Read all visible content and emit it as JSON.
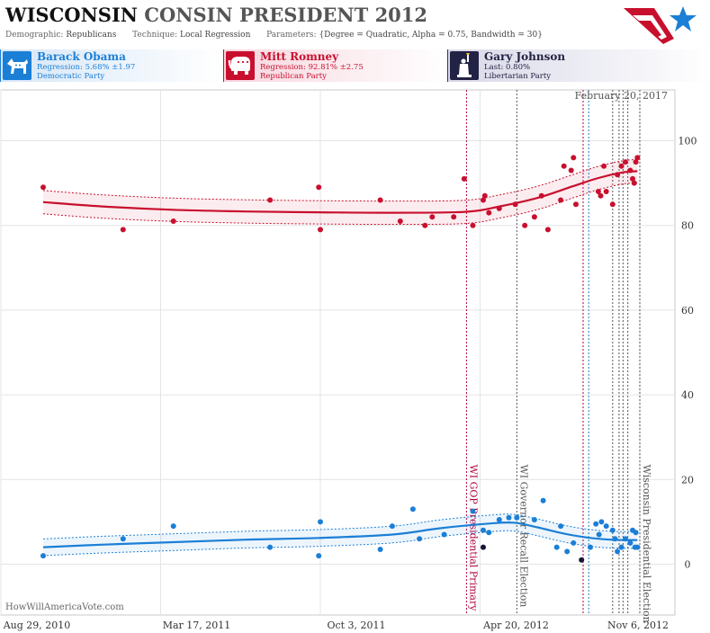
{
  "header": {
    "title_state": "WISCONSIN",
    "title_rest": "CONSIN PRESIDENT 2012",
    "demographic_label": "Demographic:",
    "demographic_value": "Republicans",
    "technique_label": "Technique:",
    "technique_value": "Local Regression",
    "parameters_label": "Parameters:",
    "parameters_value": "{Degree = Quadratic, Alpha = 0.75, Bandwidth = 30}"
  },
  "candidates": [
    {
      "name": "Barack Obama",
      "stat": "Regression: 5.68% ±1.97",
      "party": "Democratic Party",
      "color": "#1b7fd6",
      "icon": "donkey-icon"
    },
    {
      "name": "Mitt Romney",
      "stat": "Regression: 92.81% ±2.75",
      "party": "Republican Party",
      "color": "#c8102e",
      "icon": "elephant-icon"
    },
    {
      "name": "Gary Johnson",
      "stat": "Last: 0.80%",
      "party": "Libertarian Party",
      "color": "#222244",
      "icon": "statue-of-liberty-icon"
    }
  ],
  "watermark": "HowWillAmericaVote.com",
  "date_stamp": "February 20, 2017",
  "chart_data": {
    "type": "scatter",
    "x_ticks": [
      "Aug 29, 2010",
      "Mar 17, 2011",
      "Oct 3, 2011",
      "Apr 20, 2012",
      "Nov 6, 2012"
    ],
    "x_range": [
      "2010-08-29",
      "2012-11-06"
    ],
    "ylim": [
      -12,
      112
    ],
    "y_ticks": [
      0,
      20,
      40,
      60,
      80,
      100
    ],
    "grid": true,
    "events": [
      {
        "date": "2012-04-03",
        "label": "WI GOP Presidential Primary",
        "color": "#b0003a"
      },
      {
        "date": "2012-06-05",
        "label": "WI Governor Recall Election",
        "color": "#555555"
      },
      {
        "date": "2012-11-06",
        "label": "Wisconsin Presidential Election",
        "color": "#555555"
      }
    ],
    "extra_event_dates": [
      {
        "date": "2012-08-27",
        "color": "#b0003a"
      },
      {
        "date": "2012-09-03",
        "color": "#1b7fd6"
      },
      {
        "date": "2012-10-03",
        "color": "#555555"
      },
      {
        "date": "2012-10-11",
        "color": "#555555"
      },
      {
        "date": "2012-10-16",
        "color": "#555555"
      },
      {
        "date": "2012-10-22",
        "color": "#555555"
      }
    ],
    "series": [
      {
        "name": "Mitt Romney",
        "color": "#c8102e",
        "points": [
          [
            "2010-10-21",
            89
          ],
          [
            "2011-01-29",
            79
          ],
          [
            "2011-04-02",
            81
          ],
          [
            "2011-08-01",
            86
          ],
          [
            "2011-10-01",
            89
          ],
          [
            "2011-10-03",
            79
          ],
          [
            "2011-12-17",
            86
          ],
          [
            "2012-01-11",
            81
          ],
          [
            "2012-02-11",
            80
          ],
          [
            "2012-02-20",
            82
          ],
          [
            "2012-03-18",
            82
          ],
          [
            "2012-03-31",
            91
          ],
          [
            "2012-04-11",
            80
          ],
          [
            "2012-04-24",
            86
          ],
          [
            "2012-04-26",
            87
          ],
          [
            "2012-05-01",
            83
          ],
          [
            "2012-05-14",
            84
          ],
          [
            "2012-06-03",
            85
          ],
          [
            "2012-06-15",
            80
          ],
          [
            "2012-06-27",
            82
          ],
          [
            "2012-07-06",
            87
          ],
          [
            "2012-07-14",
            79
          ],
          [
            "2012-07-30",
            86
          ],
          [
            "2012-08-03",
            94
          ],
          [
            "2012-08-12",
            93
          ],
          [
            "2012-08-15",
            96
          ],
          [
            "2012-08-18",
            85
          ],
          [
            "2012-09-15",
            88
          ],
          [
            "2012-09-18",
            87
          ],
          [
            "2012-09-22",
            94
          ],
          [
            "2012-09-25",
            88
          ],
          [
            "2012-10-03",
            85
          ],
          [
            "2012-10-09",
            92
          ],
          [
            "2012-10-14",
            94
          ],
          [
            "2012-10-19",
            95
          ],
          [
            "2012-10-25",
            93
          ],
          [
            "2012-10-28",
            91
          ],
          [
            "2012-10-30",
            90
          ],
          [
            "2012-11-01",
            95
          ],
          [
            "2012-11-03",
            96
          ]
        ],
        "trend": [
          [
            "2010-10-21",
            85.5
          ],
          [
            "2011-01-01",
            84.5
          ],
          [
            "2011-04-01",
            83.7
          ],
          [
            "2011-07-01",
            83.3
          ],
          [
            "2011-10-01",
            83.1
          ],
          [
            "2012-01-01",
            83
          ],
          [
            "2012-04-01",
            83.2
          ],
          [
            "2012-05-15",
            84.5
          ],
          [
            "2012-07-01",
            86.5
          ],
          [
            "2012-08-15",
            89.3
          ],
          [
            "2012-09-15",
            91.2
          ],
          [
            "2012-10-15",
            92.5
          ],
          [
            "2012-11-03",
            92.81
          ]
        ],
        "band": 2.75
      },
      {
        "name": "Barack Obama",
        "color": "#1b7fd6",
        "points": [
          [
            "2010-10-21",
            2
          ],
          [
            "2011-01-29",
            6
          ],
          [
            "2011-04-02",
            9
          ],
          [
            "2011-08-01",
            4
          ],
          [
            "2011-10-01",
            2
          ],
          [
            "2011-10-03",
            10
          ],
          [
            "2011-12-17",
            3.5
          ],
          [
            "2012-01-01",
            9
          ],
          [
            "2012-01-27",
            13
          ],
          [
            "2012-02-04",
            6
          ],
          [
            "2012-03-06",
            7
          ],
          [
            "2012-04-11",
            12.5
          ],
          [
            "2012-04-24",
            8
          ],
          [
            "2012-05-01",
            7.5
          ],
          [
            "2012-05-14",
            10.5
          ],
          [
            "2012-05-26",
            11
          ],
          [
            "2012-06-05",
            11
          ],
          [
            "2012-06-27",
            10.5
          ],
          [
            "2012-07-08",
            15
          ],
          [
            "2012-07-25",
            4
          ],
          [
            "2012-07-30",
            9
          ],
          [
            "2012-08-07",
            3
          ],
          [
            "2012-08-15",
            5
          ],
          [
            "2012-09-05",
            4
          ],
          [
            "2012-09-12",
            9.5
          ],
          [
            "2012-09-16",
            7
          ],
          [
            "2012-09-19",
            10
          ],
          [
            "2012-09-25",
            9
          ],
          [
            "2012-10-03",
            8
          ],
          [
            "2012-10-06",
            6
          ],
          [
            "2012-10-09",
            3
          ],
          [
            "2012-10-14",
            4
          ],
          [
            "2012-10-19",
            6
          ],
          [
            "2012-10-25",
            5
          ],
          [
            "2012-10-28",
            8
          ],
          [
            "2012-10-31",
            4
          ],
          [
            "2012-11-01",
            7.5
          ],
          [
            "2012-11-03",
            4
          ]
        ],
        "trend": [
          [
            "2010-10-21",
            4
          ],
          [
            "2011-01-01",
            4.6
          ],
          [
            "2011-04-01",
            5.2
          ],
          [
            "2011-07-01",
            5.8
          ],
          [
            "2011-10-01",
            6.2
          ],
          [
            "2012-01-01",
            7
          ],
          [
            "2012-03-01",
            8.5
          ],
          [
            "2012-05-01",
            9.6
          ],
          [
            "2012-06-01",
            9.8
          ],
          [
            "2012-07-01",
            8.7
          ],
          [
            "2012-08-01",
            7.3
          ],
          [
            "2012-09-01",
            6.3
          ],
          [
            "2012-10-01",
            5.8
          ],
          [
            "2012-11-03",
            5.68
          ]
        ],
        "band": 1.97
      },
      {
        "name": "Gary Johnson",
        "color": "#15153a",
        "points": [
          [
            "2012-04-24",
            4
          ],
          [
            "2012-08-25",
            1
          ]
        ]
      }
    ]
  }
}
